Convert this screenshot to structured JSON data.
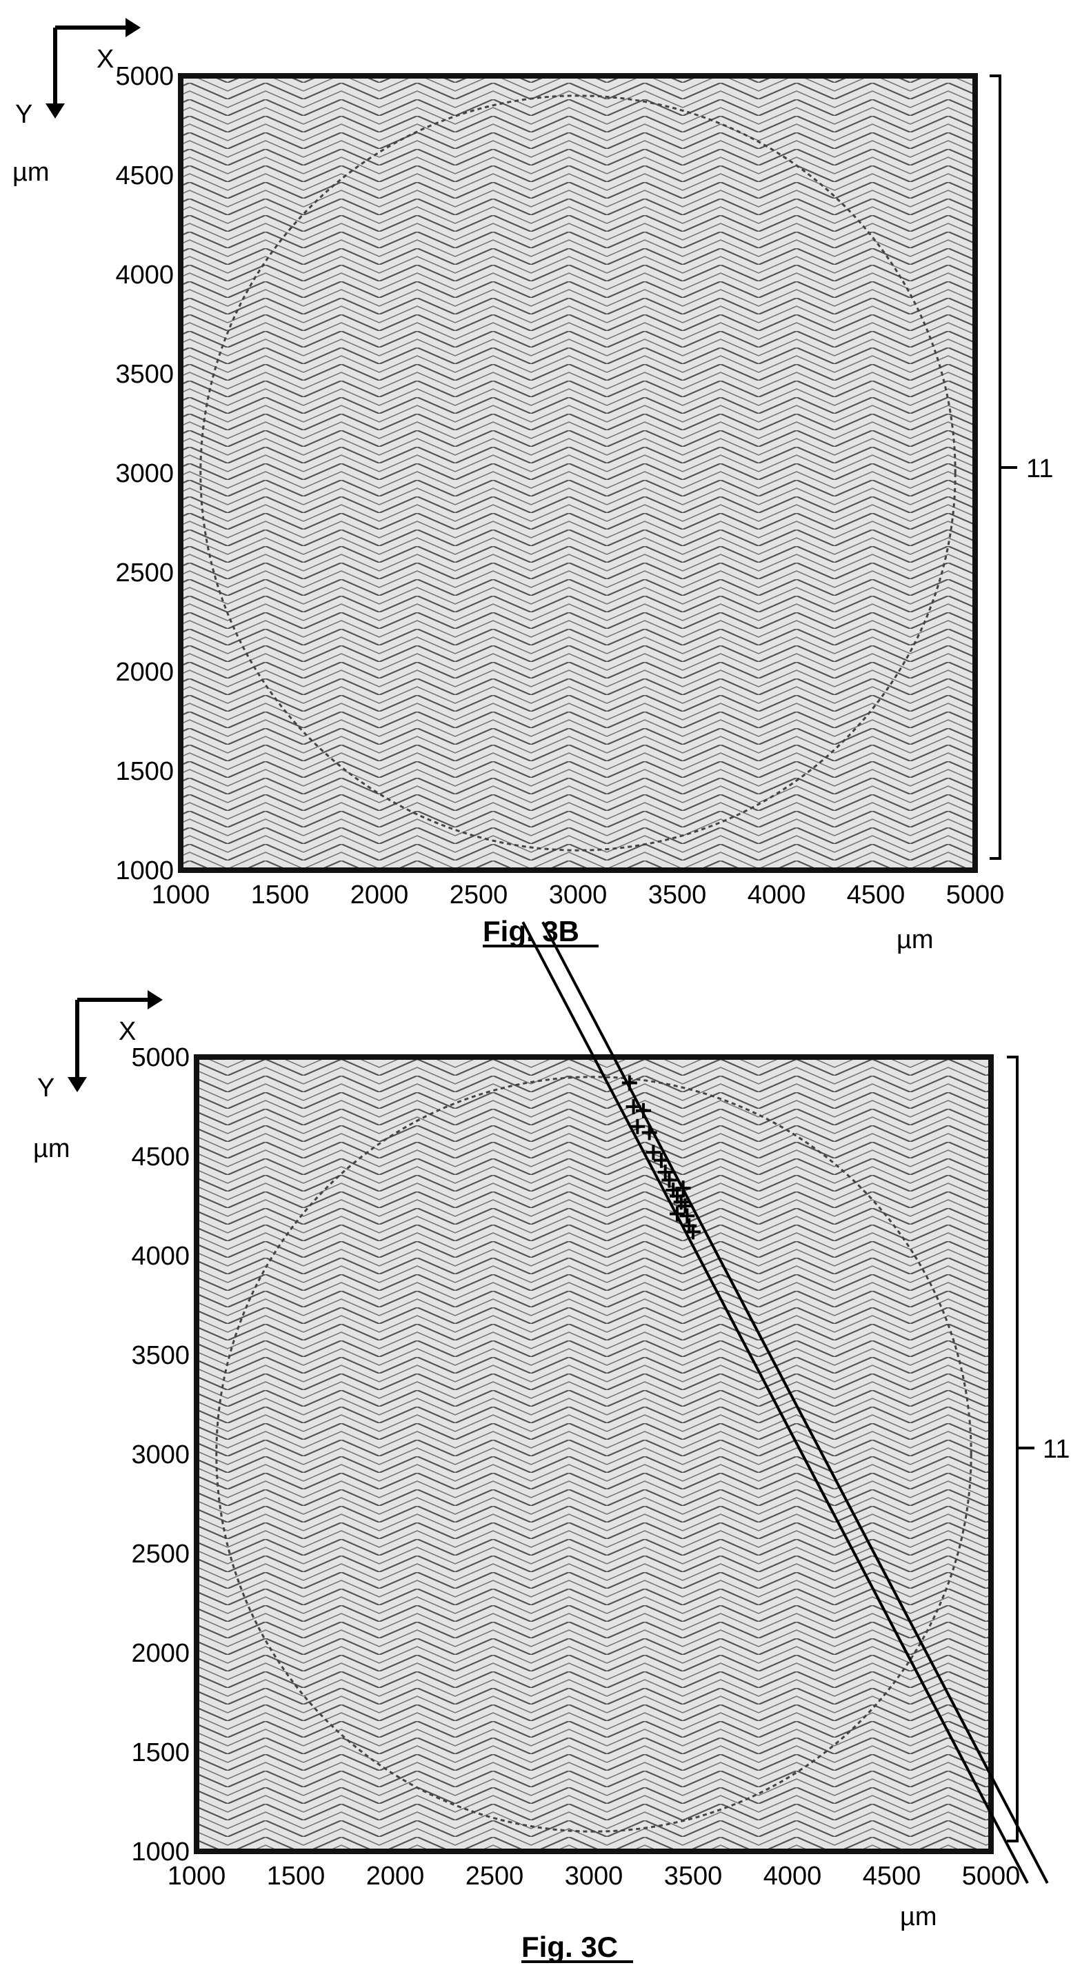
{
  "figures": [
    {
      "caption": "Fig. 3B",
      "x_axis_letter": "X",
      "y_axis_letter": "Y",
      "y_unit": "µm",
      "x_unit": "µm",
      "reference_numeral": "11",
      "chart_data": {
        "type": "scatter",
        "title": "",
        "xlabel": "µm",
        "ylabel": "µm",
        "xlim": [
          1000,
          5000
        ],
        "ylim": [
          1000,
          5000
        ],
        "x_ticks": [
          "1000",
          "1500",
          "2000",
          "2500",
          "3000",
          "3500",
          "4000",
          "4500",
          "5000"
        ],
        "y_ticks": [
          "1000",
          "1500",
          "2000",
          "2500",
          "3000",
          "3500",
          "4000",
          "4500",
          "5000"
        ],
        "pattern": "zigzag scan path",
        "circle_boundary": {
          "center": [
            3000,
            3000
          ],
          "radius": 1900
        },
        "markers": [],
        "lines": []
      }
    },
    {
      "caption": "Fig. 3C",
      "x_axis_letter": "X",
      "y_axis_letter": "Y",
      "y_unit": "µm",
      "x_unit": "µm",
      "reference_numeral": "11",
      "chart_data": {
        "type": "scatter",
        "title": "",
        "xlabel": "µm",
        "ylabel": "µm",
        "xlim": [
          1000,
          5000
        ],
        "ylim": [
          1000,
          5000
        ],
        "x_ticks": [
          "1000",
          "1500",
          "2000",
          "2500",
          "3000",
          "3500",
          "4000",
          "4500",
          "5000"
        ],
        "y_ticks": [
          "1000",
          "1500",
          "2000",
          "2500",
          "3000",
          "3500",
          "4000",
          "4500",
          "5000"
        ],
        "pattern": "zigzag scan path",
        "circle_boundary": {
          "center": [
            3000,
            3000
          ],
          "radius": 1900
        },
        "markers": [
          [
            3180,
            4870
          ],
          [
            3200,
            4750
          ],
          [
            3250,
            4730
          ],
          [
            3220,
            4650
          ],
          [
            3280,
            4620
          ],
          [
            3300,
            4520
          ],
          [
            3340,
            4480
          ],
          [
            3360,
            4420
          ],
          [
            3380,
            4380
          ],
          [
            3400,
            4330
          ],
          [
            3420,
            4300
          ],
          [
            3440,
            4270
          ],
          [
            3460,
            4250
          ],
          [
            3470,
            4200
          ],
          [
            3480,
            4150
          ],
          [
            3500,
            4120
          ],
          [
            3420,
            4210
          ],
          [
            3450,
            4340
          ]
        ],
        "lines": [
          {
            "from": [
              3000,
              5000
            ],
            "to": [
              5100,
              1000
            ]
          },
          {
            "from": [
              3100,
              5000
            ],
            "to": [
              5200,
              1000
            ]
          }
        ]
      }
    }
  ]
}
